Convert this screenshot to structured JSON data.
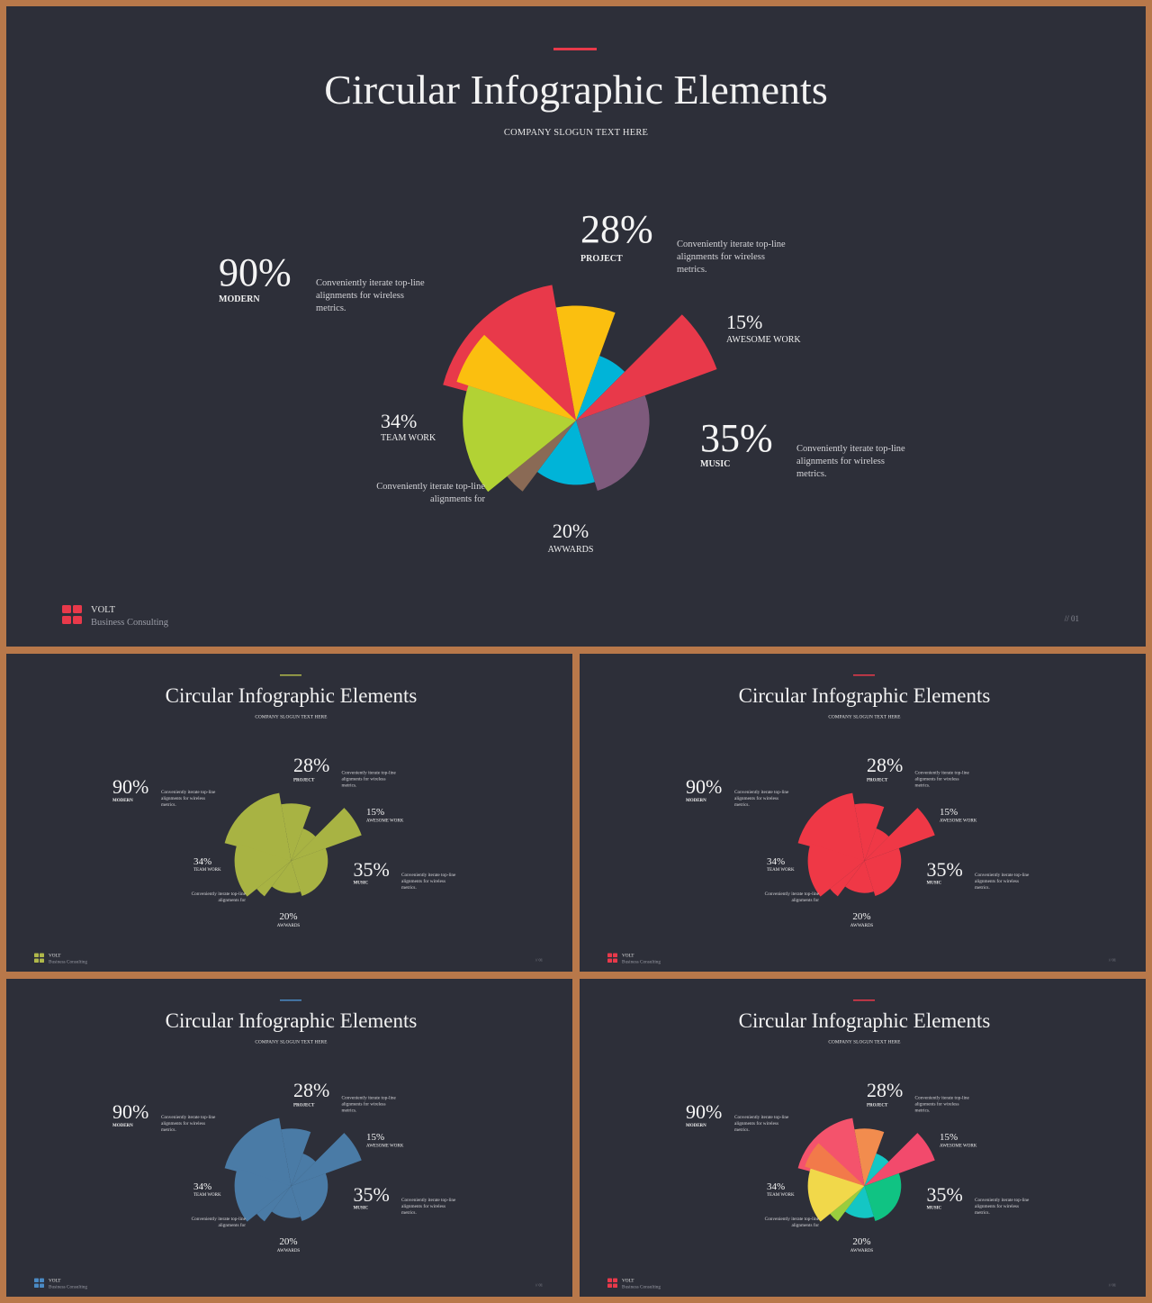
{
  "title": "Circular Infographic Elements",
  "slogan": "COMPANY SLOGUN TEXT HERE",
  "brand": {
    "name": "VOLT",
    "subtitle": "Business  Consulting"
  },
  "page_number": "// 01",
  "items": [
    {
      "pct": "90%",
      "label": "MODERN",
      "desc": [
        "Conveniently iterate top-line",
        "alignments for wireless",
        "metrics."
      ]
    },
    {
      "pct": "28%",
      "label": "PROJECT",
      "desc": [
        "Conveniently iterate top-line",
        "alignments for wireless",
        "metrics."
      ]
    },
    {
      "pct": "15%",
      "label": "AWESOME WORK",
      "desc": []
    },
    {
      "pct": "35%",
      "label": "MUSIC",
      "desc": [
        "Conveniently iterate top-line",
        "alignments for wireless",
        "metrics."
      ]
    },
    {
      "pct": "34%",
      "label": "TEAM WORK",
      "desc": []
    },
    {
      "pct": "20%",
      "label": "AWWARDS",
      "desc": []
    }
  ],
  "bottom_left_desc": [
    "Conveniently iterate top-line",
    "alignments for"
  ],
  "chart_data": {
    "type": "polar-area",
    "segments": [
      {
        "name": "red-large",
        "start_deg": 285,
        "end_deg": 350,
        "value": 90
      },
      {
        "name": "yellow",
        "start_deg": 350,
        "end_deg": 20,
        "value": 75
      },
      {
        "name": "cyan-small",
        "start_deg": 20,
        "end_deg": 45,
        "value": 45
      },
      {
        "name": "red-spike",
        "start_deg": 45,
        "end_deg": 70,
        "value": 98
      },
      {
        "name": "purple",
        "start_deg": 70,
        "end_deg": 163,
        "value": 48
      },
      {
        "name": "cyan-bottom",
        "start_deg": 163,
        "end_deg": 217,
        "value": 42
      },
      {
        "name": "brown",
        "start_deg": 217,
        "end_deg": 231,
        "value": 58
      },
      {
        "name": "lime",
        "start_deg": 231,
        "end_deg": 288,
        "value": 74
      },
      {
        "name": "orange",
        "start_deg": 288,
        "end_deg": 313,
        "value": 82
      }
    ]
  },
  "variants": [
    {
      "name": "multicolor",
      "accent": "#e8394a",
      "logo": "#e8394a",
      "colors": [
        "#e8394a",
        "#fbbf0f",
        "#00b4d8",
        "#e8394a",
        "#7e5a7c",
        "#00b4d8",
        "#8a6a55",
        "#b2d234",
        "#fbbf0f"
      ]
    },
    {
      "name": "olive",
      "accent": "#b0b84a",
      "logo": "#b0b84a",
      "colors": [
        "#a8b343",
        "#a8b343",
        "#a8b343",
        "#a8b343",
        "#a8b343",
        "#a8b343",
        "#a8b343",
        "#a8b343",
        "#a8b343"
      ]
    },
    {
      "name": "red",
      "accent": "#e8394a",
      "logo": "#e8394a",
      "colors": [
        "#ef3846",
        "#ef3846",
        "#ef3846",
        "#ef3846",
        "#ef3846",
        "#ef3846",
        "#ef3846",
        "#ef3846",
        "#ef3846"
      ]
    },
    {
      "name": "blue",
      "accent": "#4a8ac4",
      "logo": "#4a8ac4",
      "colors": [
        "#4a7ba6",
        "#4a7ba6",
        "#4a7ba6",
        "#4a7ba6",
        "#4a7ba6",
        "#4a7ba6",
        "#4a7ba6",
        "#4a7ba6",
        "#4a7ba6"
      ]
    },
    {
      "name": "vivid",
      "accent": "#e8394a",
      "logo": "#e8394a",
      "colors": [
        "#f4536c",
        "#f28c4e",
        "#14c6c4",
        "#f24a6c",
        "#10c383",
        "#14c6c4",
        "#9acd3e",
        "#f1d84a",
        "#f27a4a"
      ]
    }
  ]
}
